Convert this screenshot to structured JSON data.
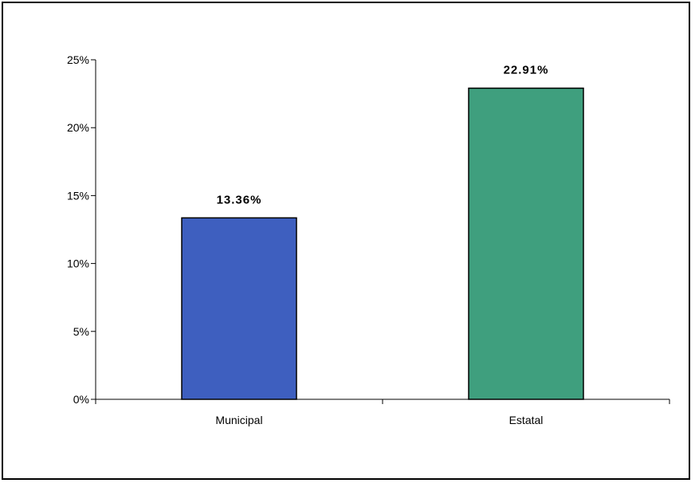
{
  "chart_data": {
    "type": "bar",
    "categories": [
      "Municipal",
      "Estatal"
    ],
    "values": [
      13.36,
      22.91
    ],
    "data_labels": [
      "13.36%",
      "22.91%"
    ],
    "colors": [
      "#3E5FBF",
      "#3F9F7E"
    ],
    "ylim": [
      0,
      25
    ],
    "yticks": [
      0,
      5,
      10,
      15,
      20,
      25
    ],
    "ytick_labels": [
      "0%",
      "5%",
      "10%",
      "15%",
      "20%",
      "25%"
    ],
    "grid": false,
    "legend": "none"
  }
}
